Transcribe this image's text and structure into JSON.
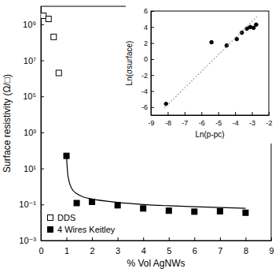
{
  "chart_data": [
    {
      "type": "scatter",
      "xlabel": "% Vol AgNWs",
      "ylabel": "Surface resistivity (Ω/□)",
      "log": "y",
      "legend": "bottom-left",
      "xlim": [
        0,
        9
      ],
      "xticks": [
        0,
        1,
        2,
        3,
        4,
        5,
        6,
        7,
        8,
        9
      ],
      "ylim": [
        0.001,
        10000000000
      ],
      "yticks": [
        {
          "value": 0.001,
          "label": "10⁻³"
        },
        {
          "value": 0.1,
          "label": "10⁻¹"
        },
        {
          "value": 10,
          "label": "10¹"
        },
        {
          "value": 1000,
          "label": "10³"
        },
        {
          "value": 100000,
          "label": "10⁵"
        },
        {
          "value": 10000000,
          "label": "10⁷"
        },
        {
          "value": 1000000000,
          "label": "10⁹"
        }
      ],
      "series": [
        {
          "name": "DDS",
          "type": "scatter",
          "marker": "square-open",
          "color": "#000000",
          "x": [
            0.1,
            0.3,
            0.5,
            0.7
          ],
          "values": [
            3000000000,
            2000000000,
            200000000,
            2000000
          ]
        },
        {
          "name": "4 Wires Keitley",
          "type": "scatter",
          "marker": "square",
          "color": "#000000",
          "x": [
            1,
            1.4,
            2,
            3,
            4,
            5,
            6,
            7,
            8
          ],
          "values": [
            50,
            0.12,
            0.14,
            0.09,
            0.06,
            0.045,
            0.04,
            0.042,
            0.035
          ]
        },
        {
          "type": "line",
          "line_style": "solid",
          "color": "#000000",
          "x": [
            1,
            1.05,
            1.1,
            1.2,
            1.4,
            1.7,
            2,
            3,
            4,
            5,
            6,
            7,
            8
          ],
          "values": [
            50,
            5,
            2,
            0.8,
            0.4,
            0.25,
            0.2,
            0.13,
            0.1,
            0.085,
            0.075,
            0.068,
            0.062
          ]
        }
      ]
    },
    {
      "type": "scatter",
      "xlabel": "Ln(p-pc)",
      "ylabel": "Ln(σsurface)",
      "xlim": [
        -9,
        -2
      ],
      "xticks": [
        -9,
        -8,
        -7,
        -6,
        -5,
        -4,
        -3,
        -2
      ],
      "ylim": [
        -7,
        6
      ],
      "yticks": [
        -6,
        -4,
        -2,
        0,
        2,
        4,
        6
      ],
      "series": [
        {
          "type": "scatter",
          "marker": "circle",
          "color": "#000000",
          "x": [
            -8.1,
            -5.4,
            -4.5,
            -3.9,
            -3.6,
            -3.3,
            -3.1,
            -2.9,
            -2.75
          ],
          "values": [
            -5.6,
            2.1,
            1.7,
            2.5,
            3.3,
            3.8,
            4.0,
            3.9,
            4.3
          ]
        },
        {
          "type": "line",
          "line_style": "dotted",
          "color": "#888888",
          "x": [
            -8.2,
            -2.7
          ],
          "values": [
            -6.1,
            5.3
          ]
        }
      ]
    }
  ]
}
